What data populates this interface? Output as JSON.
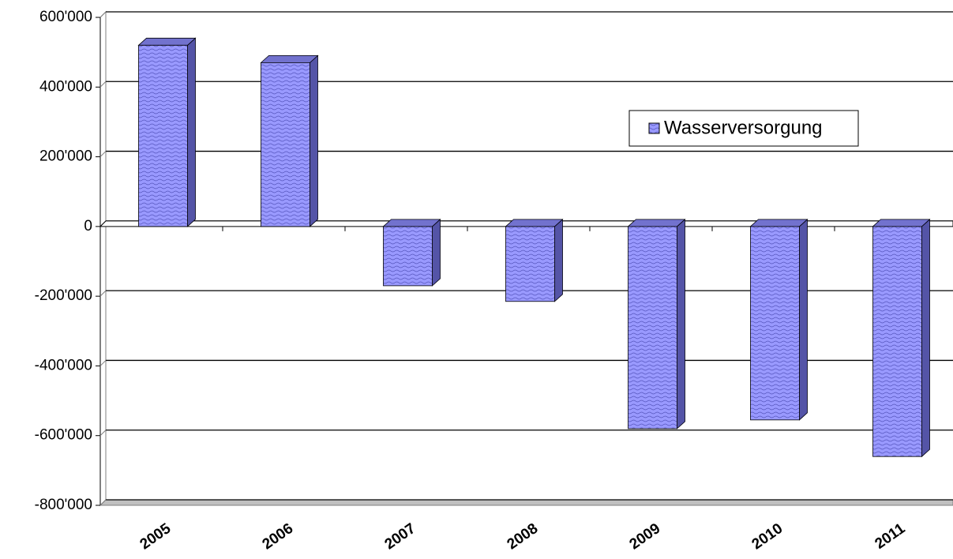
{
  "chart_data": {
    "type": "bar",
    "categories": [
      "2005",
      "2006",
      "2007",
      "2008",
      "2009",
      "2010",
      "2011"
    ],
    "series": [
      {
        "name": "Wasserversorgung",
        "color": "#9999ff",
        "values": [
          520000,
          470000,
          -170000,
          -215000,
          -580000,
          -555000,
          -660000
        ]
      }
    ],
    "ylim": [
      -800000,
      600000
    ],
    "yticks": [
      {
        "value": -800000,
        "label": "-800'000"
      },
      {
        "value": -600000,
        "label": "-600'000"
      },
      {
        "value": -400000,
        "label": "-400'000"
      },
      {
        "value": -200000,
        "label": "-200'000"
      },
      0,
      {
        "value": 200000,
        "label": "200'000"
      },
      {
        "value": 400000,
        "label": "400'000"
      },
      {
        "value": 600000,
        "label": "600'000"
      }
    ],
    "grid": true
  }
}
